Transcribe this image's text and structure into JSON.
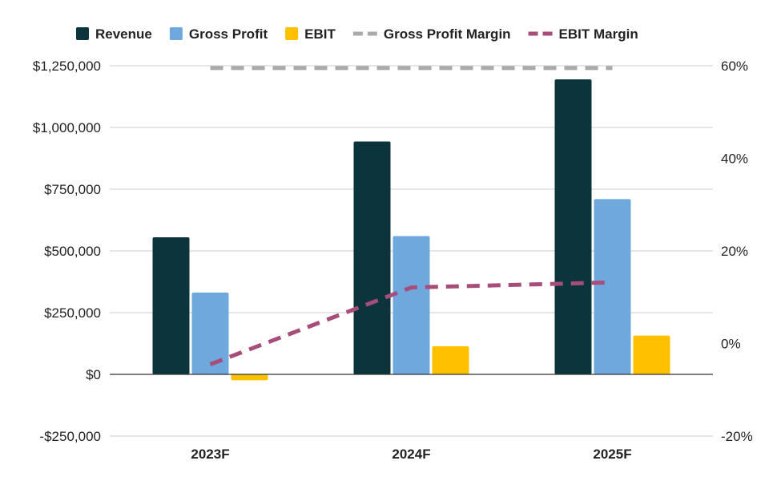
{
  "chart_data": {
    "type": "bar",
    "categories": [
      "2023F",
      "2024F",
      "2025F"
    ],
    "series": [
      {
        "name": "Revenue",
        "kind": "bar",
        "axis": "left",
        "color": "#0c343d",
        "values": [
          555000,
          943000,
          1195000
        ]
      },
      {
        "name": "Gross Profit",
        "kind": "bar",
        "axis": "left",
        "color": "#6fa8dc",
        "values": [
          331000,
          560000,
          710000
        ]
      },
      {
        "name": "EBIT",
        "kind": "bar",
        "axis": "left",
        "color": "#ffc000",
        "values": [
          -24000,
          114000,
          157000
        ]
      },
      {
        "name": "Gross Profit Margin",
        "kind": "line",
        "dashed": true,
        "axis": "right",
        "color": "#aaaaaa",
        "values": [
          59.5,
          59.5,
          59.5
        ]
      },
      {
        "name": "EBIT Margin",
        "kind": "line",
        "dashed": true,
        "axis": "right",
        "color": "#a64d79",
        "values": [
          -4.5,
          12.1,
          13.2
        ]
      }
    ],
    "left_axis": {
      "ylim": [
        -250000,
        1250000
      ],
      "ticks": [
        -250000,
        0,
        250000,
        500000,
        750000,
        1000000,
        1250000
      ],
      "tick_labels": [
        "-$250,000",
        "$0",
        "$250,000",
        "$500,000",
        "$750,000",
        "$1,000,000",
        "$1,250,000"
      ]
    },
    "right_axis": {
      "ylim": [
        -20,
        60
      ],
      "ticks": [
        -20,
        0,
        20,
        40,
        60
      ],
      "tick_labels": [
        "-20%",
        "0%",
        "20%",
        "40%",
        "60%"
      ]
    },
    "grid": true,
    "legend_position": "top"
  }
}
